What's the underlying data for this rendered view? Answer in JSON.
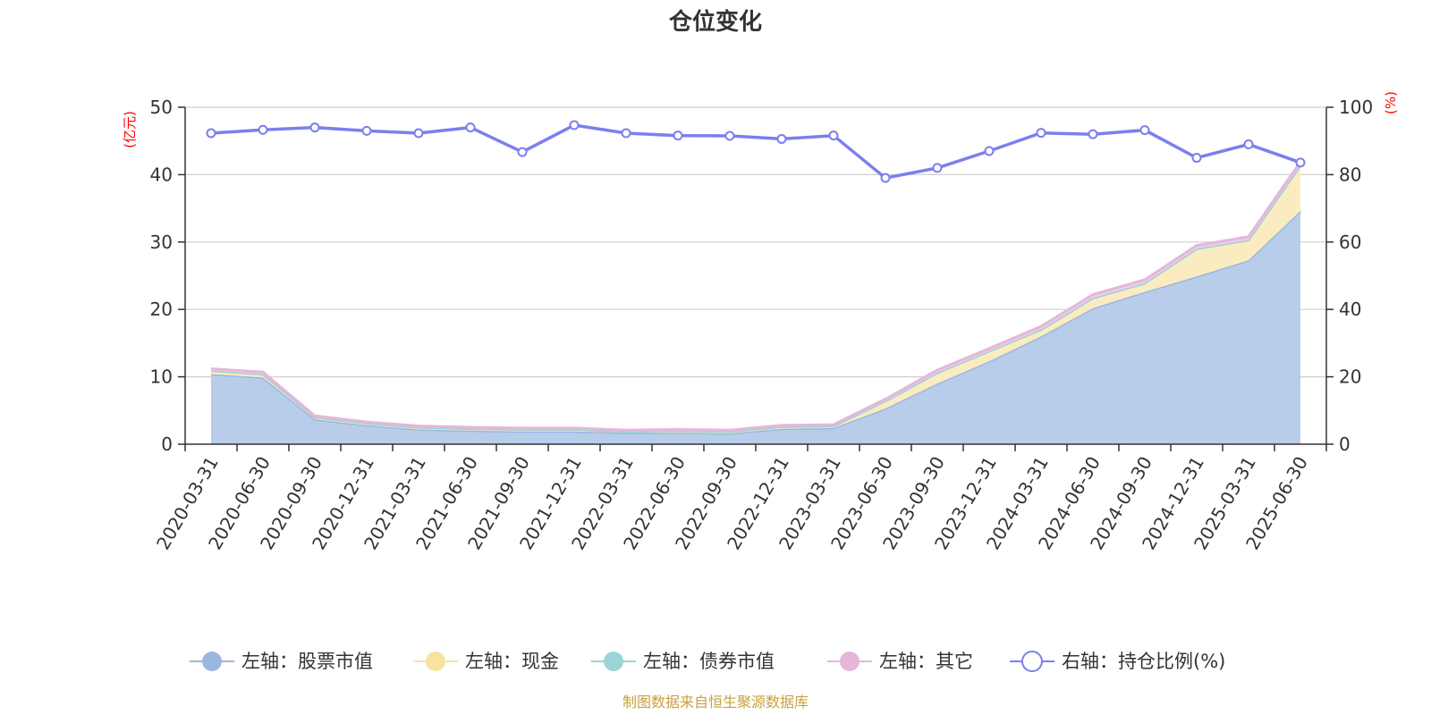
{
  "chart_data": {
    "type": "area",
    "title": "仓位变化",
    "x": [
      "2020-03-31",
      "2020-06-30",
      "2020-09-30",
      "2020-12-31",
      "2021-03-31",
      "2021-06-30",
      "2021-09-30",
      "2021-12-31",
      "2022-03-31",
      "2022-06-30",
      "2022-09-30",
      "2022-12-31",
      "2023-03-31",
      "2023-06-30",
      "2023-09-30",
      "2023-12-31",
      "2024-03-31",
      "2024-06-30",
      "2024-09-30",
      "2024-12-31",
      "2025-03-31",
      "2025-06-30"
    ],
    "left_axis": {
      "unit_label": "(亿元)",
      "ylim": [
        0,
        50
      ],
      "ticks": [
        "0",
        "10",
        "20",
        "30",
        "40",
        "50"
      ]
    },
    "right_axis": {
      "unit_label": "(%)",
      "ylim": [
        0,
        100
      ],
      "ticks": [
        "0",
        "20",
        "40",
        "60",
        "80",
        "100"
      ]
    },
    "grid": true,
    "legend_position": "bottom",
    "series": [
      {
        "name": "左轴：股票市值",
        "axis": "left",
        "stacked": true,
        "color": "#9db6e0",
        "fill": "#b8cdea",
        "values": [
          10.4,
          9.9,
          3.7,
          2.8,
          2.2,
          2.0,
          1.9,
          1.9,
          1.7,
          1.7,
          1.6,
          2.3,
          2.4,
          5.3,
          9.0,
          12.3,
          16.0,
          20.2,
          22.6,
          24.9,
          27.3,
          34.6
        ]
      },
      {
        "name": "左轴：现金",
        "axis": "left",
        "stacked": true,
        "color": "#f7e2a0",
        "fill": "#faecc0",
        "values": [
          0.5,
          0.5,
          0.3,
          0.3,
          0.3,
          0.3,
          0.3,
          0.3,
          0.2,
          0.3,
          0.3,
          0.3,
          0.3,
          1.1,
          1.6,
          1.5,
          1.0,
          1.5,
          1.3,
          4.1,
          3.0,
          6.8
        ]
      },
      {
        "name": "左轴：债券市值",
        "axis": "left",
        "stacked": true,
        "color": "#9ad4d6",
        "fill": "#b6e1e2",
        "values": [
          0,
          0,
          0,
          0,
          0,
          0,
          0,
          0,
          0,
          0,
          0,
          0,
          0,
          0,
          0,
          0,
          0,
          0,
          0,
          0,
          0,
          0
        ]
      },
      {
        "name": "左轴：其它",
        "axis": "left",
        "stacked": true,
        "color": "#e6b6da",
        "fill": "#f0cce6",
        "values": [
          0.3,
          0.3,
          0.2,
          0.2,
          0.2,
          0.2,
          0.2,
          0.2,
          0.2,
          0.2,
          0.2,
          0.2,
          0.2,
          0.3,
          0.4,
          0.4,
          0.5,
          0.5,
          0.5,
          0.5,
          0.5,
          0.5
        ]
      },
      {
        "name": "右轴：持仓比例(%)",
        "axis": "right",
        "type": "line",
        "color": "#7b7fee",
        "values": [
          92.3,
          93.3,
          94.0,
          93.0,
          92.3,
          94.0,
          86.7,
          94.7,
          92.3,
          91.6,
          91.5,
          90.6,
          91.6,
          79.0,
          82.0,
          87.0,
          92.4,
          92.0,
          93.2,
          85.0,
          89.0,
          83.6
        ]
      }
    ],
    "source": "制图数据来自恒生聚源数据库"
  }
}
